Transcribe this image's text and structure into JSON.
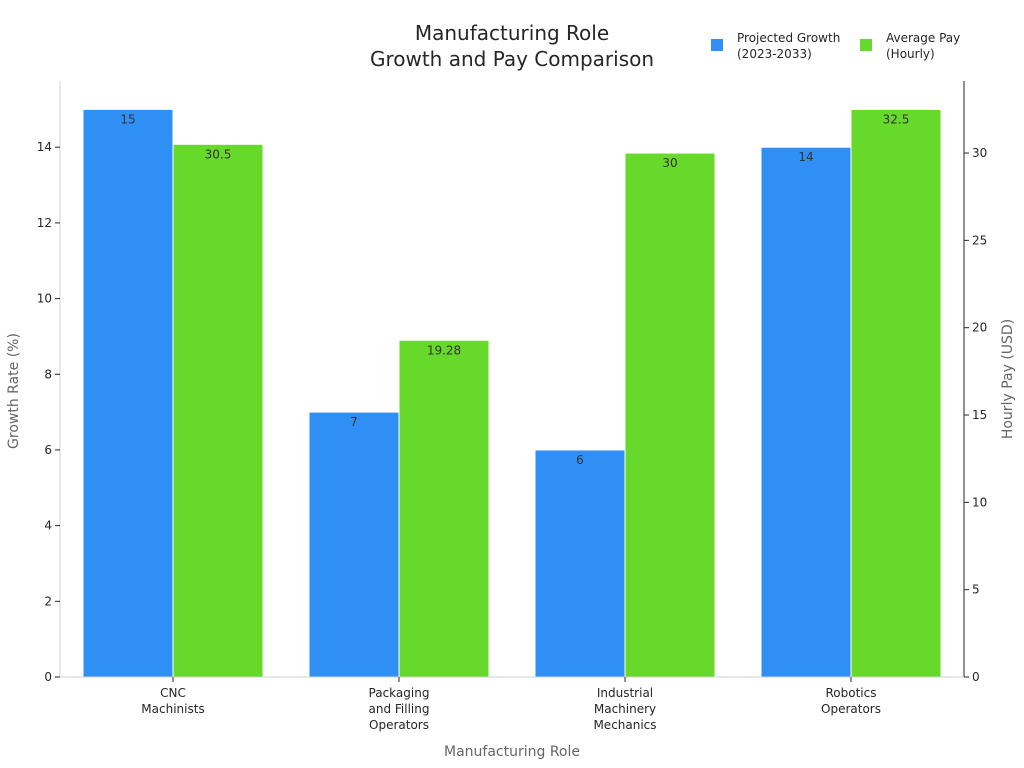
{
  "chart_data": {
    "type": "bar",
    "title_lines": [
      "Manufacturing Role",
      "Growth and Pay Comparison"
    ],
    "xlabel": "Manufacturing Role",
    "ylabel_left": "Growth Rate (%)",
    "ylabel_right": "Hourly Pay (USD)",
    "categories": [
      [
        "CNC",
        "Machinists"
      ],
      [
        "Packaging",
        "and Filling",
        "Operators"
      ],
      [
        "Industrial",
        "Machinery",
        "Mechanics"
      ],
      [
        "Robotics",
        "Operators"
      ]
    ],
    "series": [
      {
        "key": "growth",
        "legend_lines": [
          "Projected Growth",
          "(2023-2033)"
        ],
        "axis": "left",
        "color": "#2f8ff5",
        "values": [
          15,
          7,
          6,
          14
        ],
        "labels": [
          "15",
          "7",
          "6",
          "14"
        ]
      },
      {
        "key": "pay",
        "legend_lines": [
          "Average Pay",
          "(Hourly)"
        ],
        "axis": "right",
        "color": "#66d92b",
        "values": [
          30.5,
          19.28,
          30,
          32.5
        ],
        "labels": [
          "30.5",
          "19.28",
          "30",
          "32.5"
        ]
      }
    ],
    "ylim_left": [
      0,
      15.75
    ],
    "yticks_left": [
      "0",
      "2",
      "4",
      "6",
      "8",
      "10",
      "12",
      "14"
    ],
    "ylim_right": [
      0,
      34.125
    ],
    "yticks_right": [
      "0",
      "5",
      "10",
      "15",
      "20",
      "25",
      "30"
    ],
    "legend_position": "top-right",
    "grid": false
  }
}
